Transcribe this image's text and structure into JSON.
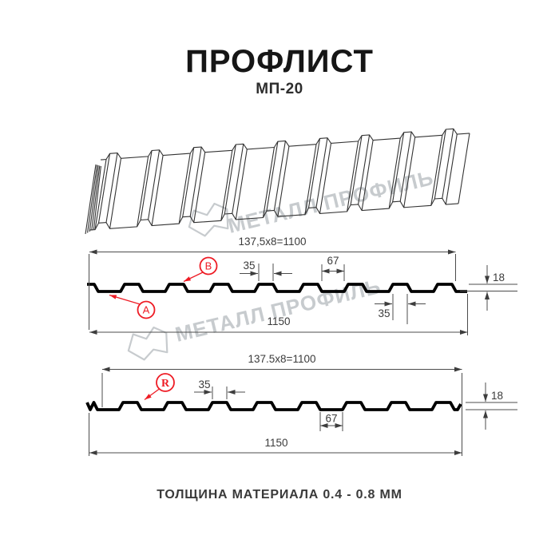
{
  "header": {
    "title": "ПРОФЛИСТ",
    "subtitle": "МП-20"
  },
  "watermark": {
    "brand": "МЕТАЛЛ ПРОФИЛЬ"
  },
  "drawings": {
    "front_profile": {
      "covering_width": "137,5x8=1100",
      "rib_top_width": "35",
      "valley_width": "67",
      "profile_height": "18",
      "rib_bottom_width": "35",
      "overall_width": "1150",
      "label_a": "A",
      "label_b": "B"
    },
    "reverse_profile": {
      "covering_width": "137.5x8=1100",
      "rib_top_width": "35",
      "valley_width": "67",
      "profile_height": "18",
      "overall_width": "1150",
      "label_r": "R"
    }
  },
  "footer": {
    "text": "ТОЛЩИНА МАТЕРИАЛА 0.4 - 0.8 ММ"
  },
  "colors": {
    "accent_red": "#ee1c25",
    "line_dark": "#4c4c4c",
    "profile_black": "#000000",
    "watermark_gray": "#c7cbce"
  }
}
